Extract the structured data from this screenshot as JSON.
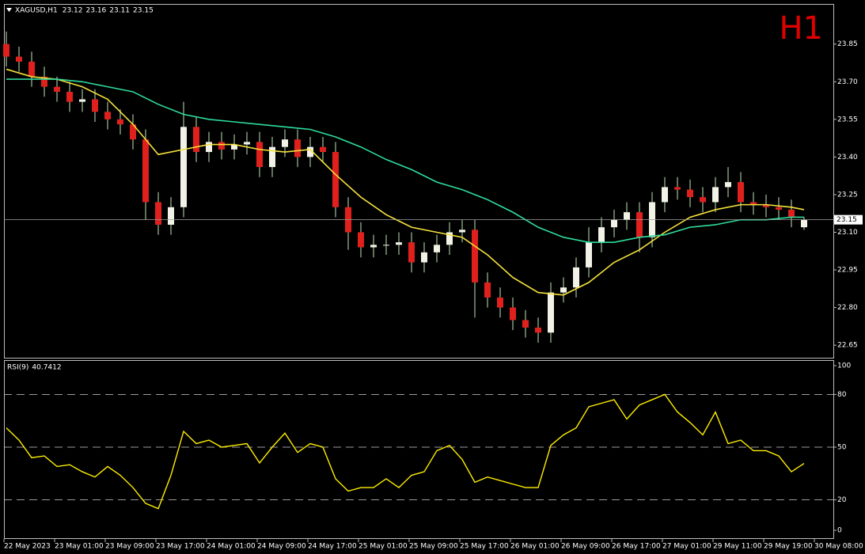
{
  "chart_data": [
    {
      "type": "candlestick",
      "title": "XAGUSD,H1",
      "timeframe_label": "H1",
      "open": [
        23.85,
        23.8,
        23.78,
        23.72,
        23.68,
        23.66,
        23.62,
        23.63,
        23.58,
        23.55,
        23.53,
        23.47,
        23.22,
        23.13,
        23.2,
        23.52,
        23.42,
        23.46,
        23.43,
        23.45,
        23.46,
        23.36,
        23.44,
        23.47,
        23.4,
        23.44,
        23.42,
        23.2,
        23.1,
        23.04,
        23.05,
        23.05,
        23.06,
        22.98,
        23.02,
        23.05,
        23.1,
        23.11,
        22.9,
        22.84,
        22.8,
        22.75,
        22.72,
        22.7,
        22.86,
        22.88,
        22.96,
        23.06,
        23.12,
        23.15,
        23.18,
        23.08,
        23.22,
        23.28,
        23.27,
        23.24,
        23.22,
        23.28,
        23.3,
        23.22,
        23.21,
        23.2,
        23.19,
        23.12
      ],
      "high": [
        23.9,
        23.84,
        23.82,
        23.76,
        23.72,
        23.7,
        23.67,
        23.67,
        23.62,
        23.59,
        23.57,
        23.51,
        23.26,
        23.24,
        23.62,
        23.56,
        23.5,
        23.5,
        23.49,
        23.5,
        23.5,
        23.48,
        23.51,
        23.51,
        23.48,
        23.48,
        23.46,
        23.24,
        23.14,
        23.09,
        23.09,
        23.1,
        23.1,
        23.06,
        23.09,
        23.14,
        23.15,
        23.15,
        22.94,
        22.88,
        22.84,
        22.79,
        22.76,
        22.9,
        22.92,
        23.0,
        23.12,
        23.16,
        23.19,
        23.22,
        23.22,
        23.26,
        23.32,
        23.32,
        23.31,
        23.28,
        23.32,
        23.36,
        23.34,
        23.26,
        23.25,
        23.24,
        23.23,
        23.16
      ],
      "low": [
        23.76,
        23.74,
        23.68,
        23.64,
        23.62,
        23.58,
        23.58,
        23.54,
        23.51,
        23.49,
        23.43,
        23.15,
        23.09,
        23.09,
        23.16,
        23.38,
        23.38,
        23.39,
        23.39,
        23.41,
        23.32,
        23.32,
        23.4,
        23.36,
        23.36,
        23.38,
        23.16,
        23.03,
        23.0,
        23.0,
        23.01,
        23.01,
        22.94,
        22.94,
        22.98,
        23.01,
        23.06,
        22.76,
        22.8,
        22.76,
        22.71,
        22.68,
        22.66,
        22.66,
        22.82,
        22.84,
        22.92,
        23.02,
        23.08,
        23.11,
        23.02,
        23.04,
        23.18,
        23.23,
        23.2,
        23.18,
        23.18,
        23.24,
        23.18,
        23.17,
        23.16,
        23.15,
        23.12,
        23.11
      ],
      "close": [
        23.8,
        23.78,
        23.72,
        23.68,
        23.66,
        23.62,
        23.63,
        23.58,
        23.55,
        23.53,
        23.47,
        23.22,
        23.13,
        23.2,
        23.52,
        23.42,
        23.46,
        23.43,
        23.45,
        23.46,
        23.36,
        23.44,
        23.47,
        23.4,
        23.44,
        23.42,
        23.2,
        23.1,
        23.04,
        23.05,
        23.05,
        23.06,
        22.98,
        23.02,
        23.05,
        23.1,
        23.11,
        22.9,
        22.84,
        22.8,
        22.75,
        22.72,
        22.7,
        22.86,
        22.88,
        22.96,
        23.06,
        23.12,
        23.15,
        23.18,
        23.08,
        23.22,
        23.28,
        23.27,
        23.24,
        23.22,
        23.28,
        23.3,
        23.22,
        23.21,
        23.2,
        23.19,
        23.16,
        23.15
      ],
      "up_color": "#f2f2e6",
      "down_color": "#e0201c",
      "wick_color": "#bfe8b8",
      "series": [
        {
          "color": "#f6e23c",
          "x": [
            0,
            2,
            4,
            6,
            8,
            10,
            12,
            14,
            16,
            18,
            20,
            22,
            24,
            26,
            28,
            30,
            32,
            34,
            36,
            38,
            40,
            42,
            44,
            46,
            48,
            50,
            52,
            54,
            56,
            58,
            60,
            62,
            63
          ],
          "values": [
            23.75,
            23.72,
            23.71,
            23.68,
            23.63,
            23.53,
            23.41,
            23.43,
            23.45,
            23.45,
            23.43,
            23.42,
            23.43,
            23.33,
            23.24,
            23.17,
            23.12,
            23.1,
            23.08,
            23.01,
            22.92,
            22.86,
            22.85,
            22.9,
            22.98,
            23.03,
            23.1,
            23.16,
            23.19,
            23.21,
            23.21,
            23.2,
            23.19
          ]
        },
        {
          "color": "#2fdc9c",
          "x": [
            0,
            2,
            4,
            6,
            8,
            10,
            12,
            14,
            16,
            18,
            20,
            22,
            24,
            26,
            28,
            30,
            32,
            34,
            36,
            38,
            40,
            42,
            44,
            46,
            48,
            50,
            52,
            54,
            56,
            58,
            60,
            62,
            63
          ],
          "values": [
            23.71,
            23.71,
            23.71,
            23.7,
            23.68,
            23.66,
            23.61,
            23.57,
            23.55,
            23.54,
            23.53,
            23.52,
            23.51,
            23.48,
            23.44,
            23.39,
            23.35,
            23.3,
            23.27,
            23.23,
            23.18,
            23.12,
            23.08,
            23.06,
            23.06,
            23.08,
            23.09,
            23.12,
            23.13,
            23.15,
            23.15,
            23.16,
            23.16
          ]
        }
      ],
      "ylim": [
        22.6,
        24.01
      ],
      "yticks": [
        22.65,
        {
          "value": 22.8,
          "label": "22.80"
        },
        22.95,
        {
          "value": 23.1,
          "label": "23.10"
        },
        23.25,
        {
          "value": 23.4,
          "label": "23.40"
        },
        23.55,
        {
          "value": 23.7,
          "label": "23.70"
        },
        23.85
      ],
      "xticks": [
        {
          "value": 0,
          "label": "22 May 2023"
        },
        {
          "value": 4,
          "label": "23 May 01:00"
        },
        {
          "value": 8,
          "label": "23 May 09:00"
        },
        {
          "value": 12,
          "label": "23 May 17:00"
        },
        {
          "value": 16,
          "label": "24 May 01:00"
        },
        {
          "value": 20,
          "label": "24 May 09:00"
        },
        {
          "value": 24,
          "label": "24 May 17:00"
        },
        {
          "value": 28,
          "label": "25 May 01:00"
        },
        {
          "value": 32,
          "label": "25 May 09:00"
        },
        {
          "value": 36,
          "label": "25 May 17:00"
        },
        {
          "value": 40,
          "label": "26 May 01:00"
        },
        {
          "value": 44,
          "label": "26 May 09:00"
        },
        {
          "value": 48,
          "label": "26 May 17:00"
        },
        {
          "value": 52,
          "label": "27 May 01:00"
        },
        {
          "value": 56,
          "label": "29 May 11:00"
        },
        {
          "value": 60,
          "label": "29 May 19:00"
        },
        {
          "value": 64,
          "label": "30 May 08:00"
        }
      ]
    },
    {
      "type": "line",
      "title": "RSI(9)",
      "color": "#ffee00",
      "values": [
        61,
        54,
        44,
        45,
        39,
        40,
        36,
        33,
        39,
        34,
        27,
        18,
        15,
        34,
        59,
        52,
        54,
        50,
        51,
        52,
        41,
        50,
        58,
        47,
        52,
        50,
        32,
        25,
        27,
        27,
        32,
        27,
        34,
        36,
        48,
        51,
        43,
        30,
        33,
        31,
        29,
        27,
        27,
        51,
        57,
        61,
        73,
        75,
        77,
        66,
        74,
        77,
        80,
        70,
        64,
        57,
        70,
        52,
        54,
        48,
        48,
        45,
        36,
        40.7412
      ],
      "ylim": [
        0,
        100
      ],
      "yticks": [
        0,
        20,
        50,
        80,
        100
      ]
    }
  ]
}
